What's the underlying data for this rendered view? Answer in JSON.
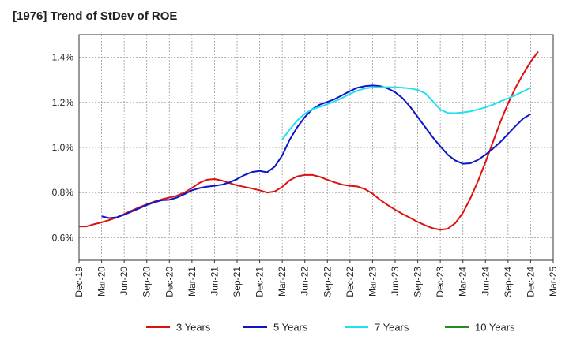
{
  "chart_data": {
    "type": "line",
    "title": "[1976]  Trend of StDev of ROE",
    "xlabel": "",
    "ylabel": "",
    "x_ticks": [
      "Dec-19",
      "Mar-20",
      "Jun-20",
      "Sep-20",
      "Dec-20",
      "Mar-21",
      "Jun-21",
      "Sep-21",
      "Dec-21",
      "Mar-22",
      "Jun-22",
      "Sep-22",
      "Dec-22",
      "Mar-23",
      "Jun-23",
      "Sep-23",
      "Dec-23",
      "Mar-24",
      "Jun-24",
      "Sep-24",
      "Dec-24",
      "Mar-25"
    ],
    "y_ticks": [
      "0.6%",
      "0.8%",
      "1.0%",
      "1.2%",
      "1.4%"
    ],
    "y_tick_values": [
      0.6,
      0.8,
      1.0,
      1.2,
      1.4
    ],
    "ylim": [
      0.5,
      1.5
    ],
    "grid": true,
    "legend_position": "bottom",
    "series": [
      {
        "name": "3 Years",
        "color": "#dd1111",
        "points": [
          [
            0,
            0.65
          ],
          [
            1,
            0.65
          ],
          [
            2,
            0.66
          ],
          [
            3,
            0.668
          ],
          [
            4,
            0.678
          ],
          [
            5,
            0.69
          ],
          [
            6,
            0.705
          ],
          [
            7,
            0.72
          ],
          [
            8,
            0.735
          ],
          [
            9,
            0.748
          ],
          [
            10,
            0.76
          ],
          [
            11,
            0.77
          ],
          [
            12,
            0.778
          ],
          [
            13,
            0.786
          ],
          [
            14,
            0.8
          ],
          [
            15,
            0.82
          ],
          [
            16,
            0.843
          ],
          [
            17,
            0.857
          ],
          [
            18,
            0.86
          ],
          [
            19,
            0.853
          ],
          [
            20,
            0.842
          ],
          [
            21,
            0.832
          ],
          [
            22,
            0.825
          ],
          [
            23,
            0.818
          ],
          [
            24,
            0.81
          ],
          [
            25,
            0.8
          ],
          [
            26,
            0.805
          ],
          [
            27,
            0.825
          ],
          [
            28,
            0.855
          ],
          [
            29,
            0.872
          ],
          [
            30,
            0.878
          ],
          [
            31,
            0.878
          ],
          [
            32,
            0.87
          ],
          [
            33,
            0.857
          ],
          [
            34,
            0.845
          ],
          [
            35,
            0.835
          ],
          [
            36,
            0.83
          ],
          [
            37,
            0.827
          ],
          [
            38,
            0.815
          ],
          [
            39,
            0.795
          ],
          [
            40,
            0.768
          ],
          [
            41,
            0.745
          ],
          [
            42,
            0.724
          ],
          [
            43,
            0.705
          ],
          [
            44,
            0.688
          ],
          [
            45,
            0.67
          ],
          [
            46,
            0.655
          ],
          [
            47,
            0.642
          ],
          [
            48,
            0.635
          ],
          [
            49,
            0.64
          ],
          [
            50,
            0.665
          ],
          [
            51,
            0.71
          ],
          [
            52,
            0.775
          ],
          [
            53,
            0.85
          ],
          [
            54,
            0.935
          ],
          [
            55,
            1.025
          ],
          [
            56,
            1.115
          ],
          [
            57,
            1.195
          ],
          [
            58,
            1.265
          ],
          [
            59,
            1.325
          ],
          [
            60,
            1.38
          ],
          [
            61,
            1.425
          ]
        ]
      },
      {
        "name": "5 Years",
        "color": "#0a16c8",
        "points": [
          [
            3,
            0.695
          ],
          [
            4,
            0.687
          ],
          [
            5,
            0.69
          ],
          [
            6,
            0.702
          ],
          [
            7,
            0.716
          ],
          [
            8,
            0.73
          ],
          [
            9,
            0.745
          ],
          [
            10,
            0.757
          ],
          [
            11,
            0.766
          ],
          [
            12,
            0.768
          ],
          [
            13,
            0.778
          ],
          [
            14,
            0.793
          ],
          [
            15,
            0.81
          ],
          [
            16,
            0.82
          ],
          [
            17,
            0.826
          ],
          [
            18,
            0.83
          ],
          [
            19,
            0.835
          ],
          [
            20,
            0.845
          ],
          [
            21,
            0.86
          ],
          [
            22,
            0.878
          ],
          [
            23,
            0.891
          ],
          [
            24,
            0.896
          ],
          [
            25,
            0.89
          ],
          [
            26,
            0.915
          ],
          [
            27,
            0.965
          ],
          [
            28,
            1.035
          ],
          [
            29,
            1.09
          ],
          [
            30,
            1.135
          ],
          [
            31,
            1.17
          ],
          [
            32,
            1.19
          ],
          [
            33,
            1.202
          ],
          [
            34,
            1.215
          ],
          [
            35,
            1.232
          ],
          [
            36,
            1.25
          ],
          [
            37,
            1.265
          ],
          [
            38,
            1.272
          ],
          [
            39,
            1.275
          ],
          [
            40,
            1.272
          ],
          [
            41,
            1.262
          ],
          [
            42,
            1.245
          ],
          [
            43,
            1.218
          ],
          [
            44,
            1.18
          ],
          [
            45,
            1.135
          ],
          [
            46,
            1.09
          ],
          [
            47,
            1.045
          ],
          [
            48,
            1.005
          ],
          [
            49,
            0.968
          ],
          [
            50,
            0.942
          ],
          [
            51,
            0.928
          ],
          [
            52,
            0.93
          ],
          [
            53,
            0.945
          ],
          [
            54,
            0.968
          ],
          [
            55,
            0.995
          ],
          [
            56,
            1.025
          ],
          [
            57,
            1.06
          ],
          [
            58,
            1.095
          ],
          [
            59,
            1.128
          ],
          [
            60,
            1.148
          ]
        ]
      },
      {
        "name": "7 Years",
        "color": "#22e0f0",
        "points": [
          [
            27,
            1.035
          ],
          [
            28,
            1.08
          ],
          [
            29,
            1.12
          ],
          [
            30,
            1.15
          ],
          [
            31,
            1.17
          ],
          [
            32,
            1.18
          ],
          [
            33,
            1.192
          ],
          [
            34,
            1.205
          ],
          [
            35,
            1.22
          ],
          [
            36,
            1.238
          ],
          [
            37,
            1.252
          ],
          [
            38,
            1.262
          ],
          [
            39,
            1.266
          ],
          [
            40,
            1.267
          ],
          [
            41,
            1.267
          ],
          [
            42,
            1.267
          ],
          [
            43,
            1.265
          ],
          [
            44,
            1.262
          ],
          [
            45,
            1.255
          ],
          [
            46,
            1.24
          ],
          [
            47,
            1.205
          ],
          [
            48,
            1.168
          ],
          [
            49,
            1.153
          ],
          [
            50,
            1.152
          ],
          [
            51,
            1.155
          ],
          [
            52,
            1.16
          ],
          [
            53,
            1.168
          ],
          [
            54,
            1.178
          ],
          [
            55,
            1.19
          ],
          [
            56,
            1.205
          ],
          [
            57,
            1.218
          ],
          [
            58,
            1.232
          ],
          [
            59,
            1.248
          ],
          [
            60,
            1.265
          ]
        ]
      },
      {
        "name": "10 Years",
        "color": "#228b22",
        "points": []
      }
    ]
  }
}
